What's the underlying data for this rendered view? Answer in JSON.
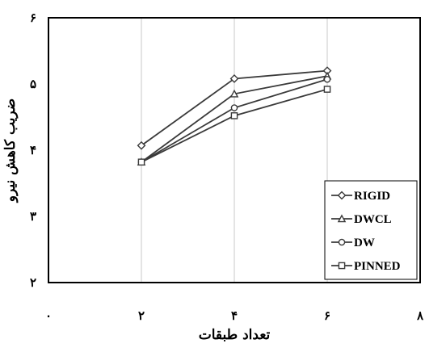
{
  "chart_data": {
    "type": "line",
    "xlabel": "تعداد طبقات",
    "ylabel": "ضریب کاهش نیرو",
    "xlim": [
      0,
      8
    ],
    "ylim": [
      2,
      6
    ],
    "x_ticks": [
      0,
      2,
      4,
      6,
      8
    ],
    "y_ticks": [
      2,
      3,
      4,
      5,
      6
    ],
    "x_tick_labels": [
      "۰",
      "۲",
      "۴",
      "۶",
      "۸"
    ],
    "y_tick_labels": [
      "۲",
      "۳",
      "۴",
      "۵",
      "۶"
    ],
    "grid": "vertical",
    "legend_position": "bottom-right",
    "x": [
      2,
      4,
      6
    ],
    "series": [
      {
        "name": "RIGID",
        "marker": "diamond",
        "values": [
          4.07,
          5.08,
          5.2
        ]
      },
      {
        "name": "DWCL",
        "marker": "triangle",
        "values": [
          3.82,
          4.85,
          5.12
        ]
      },
      {
        "name": "DW",
        "marker": "circle",
        "values": [
          3.82,
          4.64,
          5.07
        ]
      },
      {
        "name": "PINNED",
        "marker": "square",
        "values": [
          3.82,
          4.52,
          4.92
        ]
      }
    ],
    "line_color": "#3a3a3a"
  }
}
